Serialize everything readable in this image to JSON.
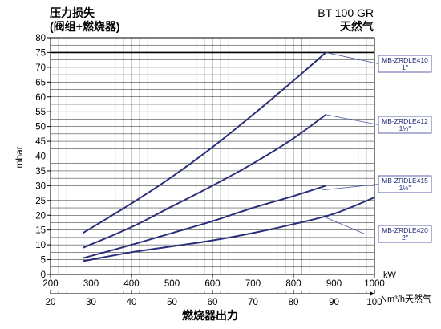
{
  "header": {
    "title_line1": "压力损失",
    "title_line2": "(阀组+燃烧器)",
    "model": "BT 100 GR",
    "fuel": "天然气"
  },
  "colors": {
    "curve": "#2a2f7a",
    "grid": "#000000",
    "legend_border": "#4a55a0"
  },
  "chart_data": {
    "type": "line",
    "title": "",
    "ylabel": "mbar",
    "xlabel": "燃烧器出力",
    "x_unit_kw": "kW",
    "x_unit_flow": "Nm³/h天然气",
    "xlim_kw": [
      200,
      1000
    ],
    "xlim_flow": [
      20,
      100
    ],
    "ylim": [
      0,
      80
    ],
    "y_ticks": [
      0,
      5,
      10,
      15,
      20,
      25,
      30,
      35,
      40,
      45,
      50,
      55,
      60,
      65,
      70,
      75,
      80
    ],
    "x_ticks_kw": [
      200,
      300,
      400,
      500,
      600,
      700,
      800,
      900,
      1000
    ],
    "x_ticks_flow": [
      20,
      30,
      40,
      50,
      60,
      70,
      80,
      90,
      100
    ],
    "grid": true,
    "reference_line_y": 75,
    "series": [
      {
        "name": "MB-ZRDLE410",
        "size": "1\"",
        "x": [
          280,
          400,
          500,
          600,
          700,
          800,
          880
        ],
        "y": [
          14,
          24,
          33,
          43,
          54,
          65.5,
          75
        ]
      },
      {
        "name": "MB-ZRDLE412",
        "size": "1¼\"",
        "x": [
          280,
          400,
          500,
          600,
          700,
          800,
          880
        ],
        "y": [
          9,
          16,
          23,
          30,
          37.5,
          46,
          54
        ]
      },
      {
        "name": "MB-ZRDLE415",
        "size": "1½\"",
        "x": [
          280,
          400,
          500,
          600,
          700,
          800,
          880
        ],
        "y": [
          5.5,
          10,
          14,
          18,
          22.5,
          26.5,
          30
        ]
      },
      {
        "name": "MB-ZRDLE420",
        "size": "2\"",
        "x": [
          280,
          400,
          500,
          600,
          700,
          800,
          900,
          1000
        ],
        "y": [
          4.5,
          7.5,
          9.5,
          11.5,
          14,
          17,
          20.5,
          26
        ]
      }
    ]
  }
}
